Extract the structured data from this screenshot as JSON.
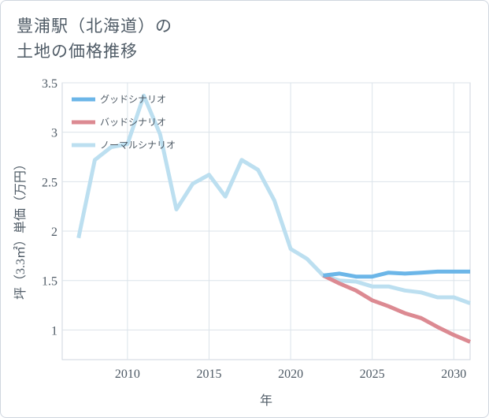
{
  "title": {
    "line1": "豊浦駅（北海道）の",
    "line2": "土地の価格推移"
  },
  "chart_data": {
    "type": "line",
    "title": "豊浦駅（北海道）の土地の価格推移",
    "xlabel": "年",
    "ylabel": "坪（3.3㎡）単価（万円）",
    "xlim": [
      2006,
      2031
    ],
    "ylim": [
      0.7,
      3.5
    ],
    "xticks": [
      2010,
      2015,
      2020,
      2025,
      2030
    ],
    "yticks": [
      1,
      1.5,
      2,
      2.5,
      3,
      3.5
    ],
    "xtick_labels": [
      "2010",
      "2015",
      "2020",
      "2025",
      "2030"
    ],
    "ytick_labels": [
      "1",
      "1.5",
      "2",
      "2.5",
      "3",
      "3.5"
    ],
    "grid": true,
    "legend_position": "top-left",
    "series": [
      {
        "name": "グッドシナリオ",
        "color": "#6cb6e8",
        "x": [
          2022,
          2023,
          2024,
          2025,
          2026,
          2027,
          2028,
          2029,
          2030,
          2031
        ],
        "values": [
          1.55,
          1.57,
          1.54,
          1.54,
          1.58,
          1.57,
          1.58,
          1.59,
          1.59,
          1.59
        ]
      },
      {
        "name": "バッドシナリオ",
        "color": "#dc8a92",
        "x": [
          2022,
          2023,
          2024,
          2025,
          2026,
          2027,
          2028,
          2029,
          2030,
          2031
        ],
        "values": [
          1.55,
          1.47,
          1.4,
          1.3,
          1.24,
          1.17,
          1.12,
          1.03,
          0.95,
          0.88
        ]
      },
      {
        "name": "ノーマルシナリオ",
        "color": "#bcdff0",
        "x": [
          2007,
          2008,
          2009,
          2010,
          2011,
          2012,
          2013,
          2014,
          2015,
          2016,
          2017,
          2018,
          2019,
          2020,
          2021,
          2022,
          2023,
          2024,
          2025,
          2026,
          2027,
          2028,
          2029,
          2030,
          2031
        ],
        "values": [
          1.93,
          2.72,
          2.85,
          2.88,
          3.37,
          2.98,
          2.22,
          2.48,
          2.57,
          2.35,
          2.72,
          2.62,
          2.31,
          1.82,
          1.72,
          1.55,
          1.5,
          1.49,
          1.44,
          1.44,
          1.4,
          1.38,
          1.33,
          1.33,
          1.27
        ]
      }
    ]
  }
}
